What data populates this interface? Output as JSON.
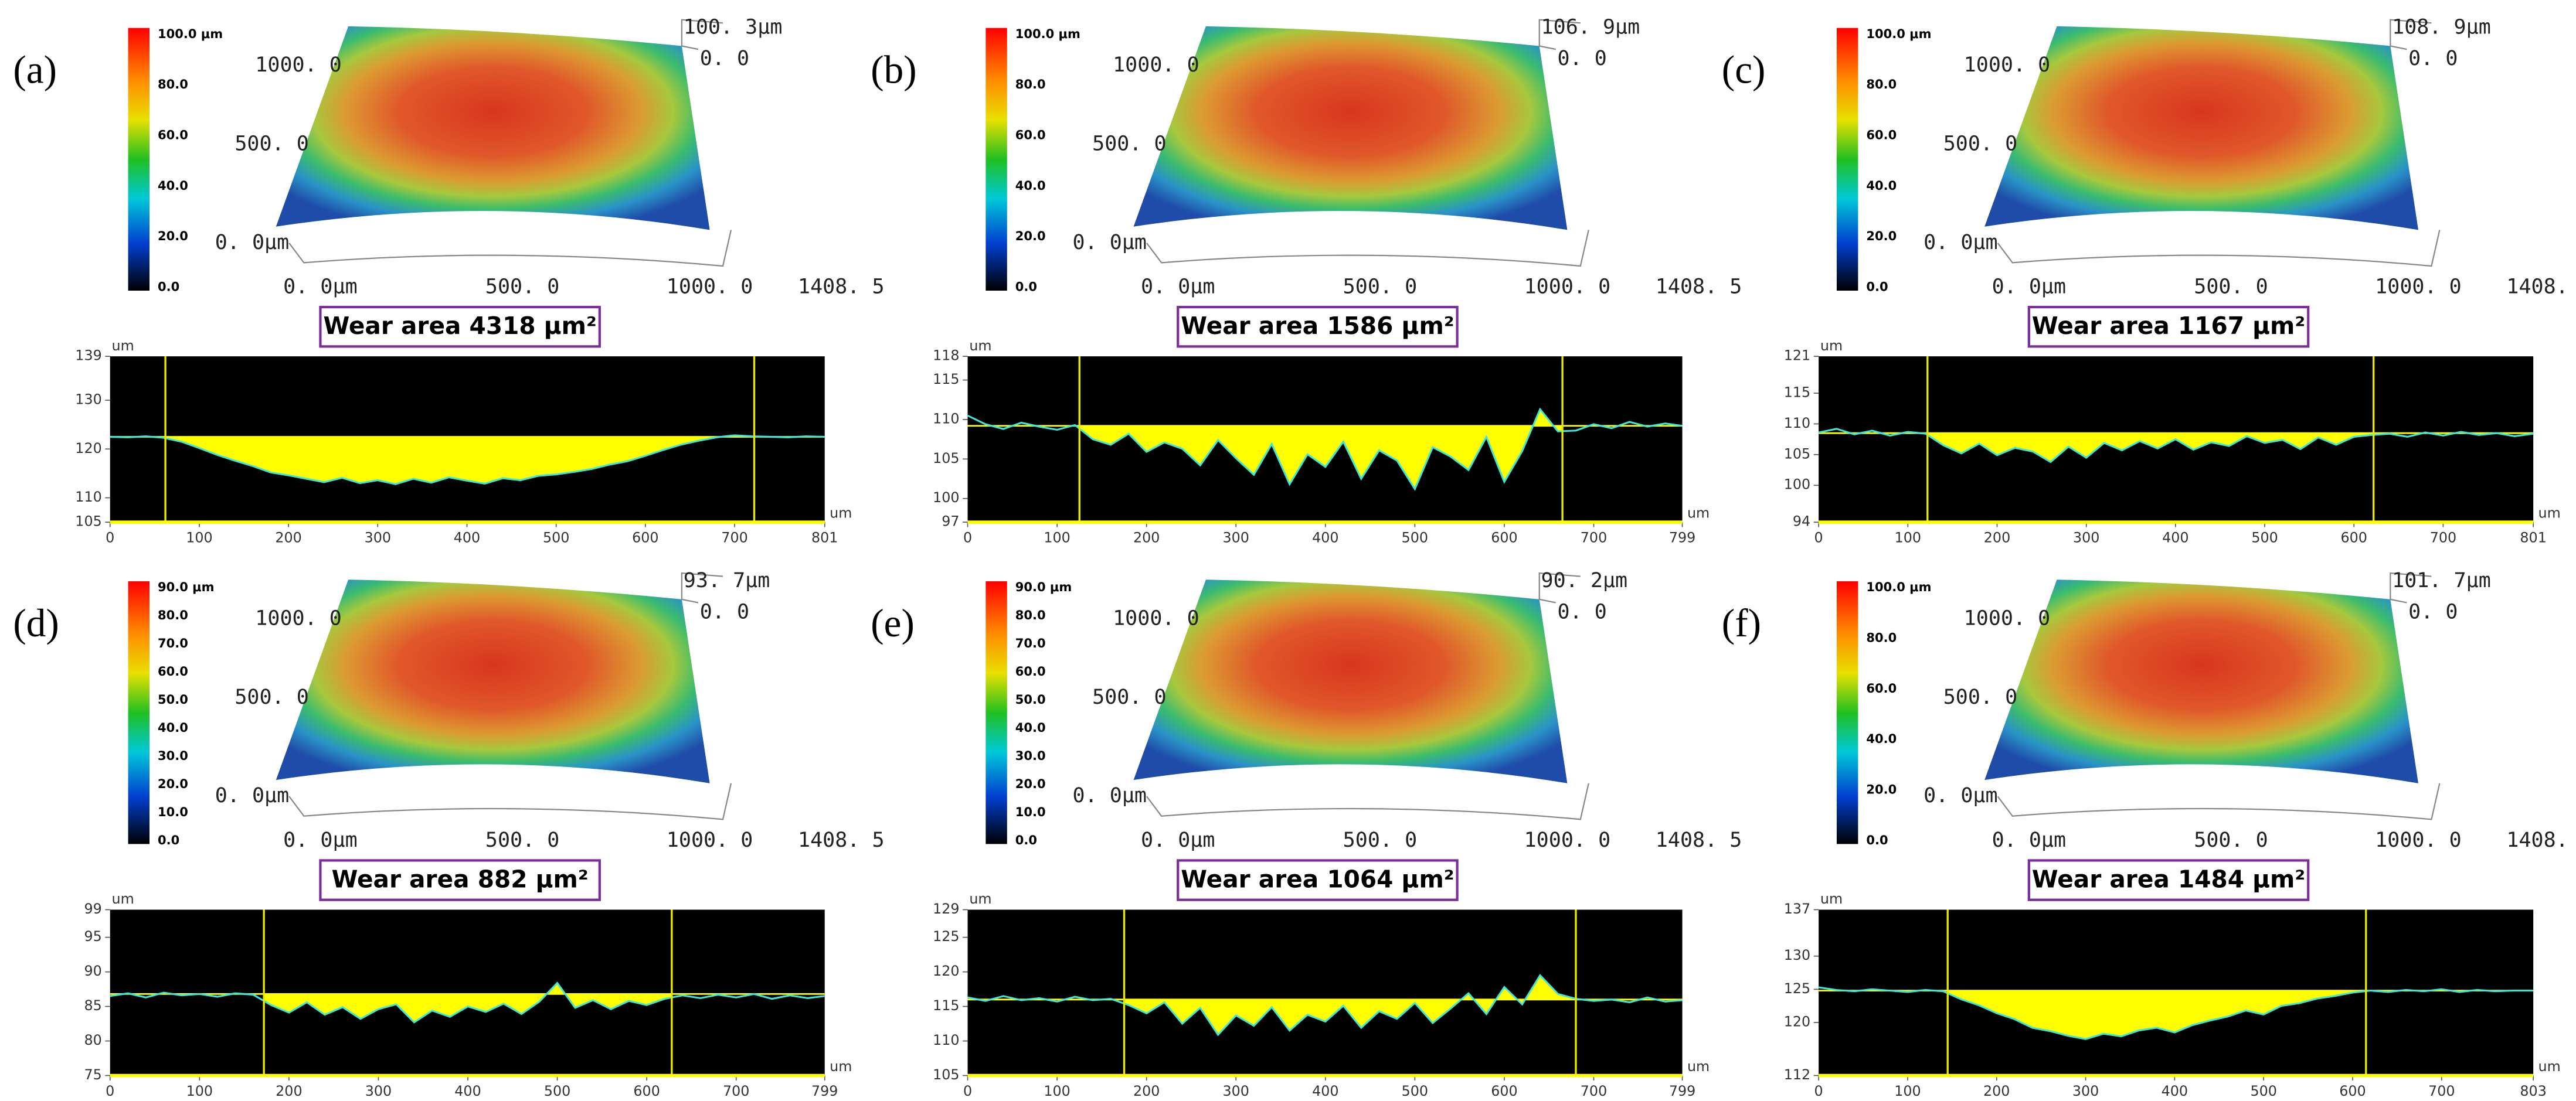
{
  "surface_axis": {
    "y_labels": [
      "1000. 0",
      "500. 0",
      "0. 0μm"
    ],
    "x_labels": [
      "0. 0μm",
      "500. 0",
      "1000. 0",
      "1408. 5"
    ],
    "z_min": "0. 0"
  },
  "chart_data": [
    {
      "type": "line",
      "label": "(a)",
      "colorbar_labels": [
        "100.0 μm",
        "80.0",
        "60.0",
        "40.0",
        "20.0",
        "0.0"
      ],
      "z_max": "100. 3μm",
      "wear_area": "Wear area 4318 μm²",
      "y_unit": "um",
      "x_unit": "um",
      "line_color": "#3ee6d8",
      "fill_color": "#ffff00",
      "x": [
        0,
        20,
        40,
        60,
        80,
        100,
        120,
        140,
        160,
        180,
        200,
        220,
        240,
        260,
        280,
        300,
        320,
        340,
        360,
        380,
        400,
        420,
        440,
        460,
        480,
        500,
        520,
        540,
        560,
        580,
        600,
        620,
        640,
        660,
        680,
        700,
        720,
        740,
        760,
        780,
        801
      ],
      "values": [
        122.5,
        122.4,
        122.6,
        122.3,
        121.5,
        120.2,
        118.8,
        117.6,
        116.5,
        115.2,
        114.6,
        113.9,
        113.2,
        114.1,
        113.0,
        113.6,
        112.8,
        113.9,
        113.1,
        114.2,
        113.5,
        112.9,
        114.0,
        113.6,
        114.5,
        114.8,
        115.3,
        115.9,
        116.8,
        117.5,
        118.6,
        119.8,
        120.9,
        121.7,
        122.4,
        122.8,
        122.6,
        122.5,
        122.4,
        122.6,
        122.5
      ],
      "reference": 122.5,
      "markers": [
        62,
        722
      ],
      "xlim": [
        0,
        801
      ],
      "xticks": [
        0,
        100,
        200,
        300,
        400,
        500,
        600,
        700,
        801
      ],
      "ylim": [
        105,
        139
      ],
      "yticks": [
        105,
        110,
        120,
        130,
        139
      ]
    },
    {
      "type": "line",
      "label": "(b)",
      "colorbar_labels": [
        "100.0 μm",
        "80.0",
        "60.0",
        "40.0",
        "20.0",
        "0.0"
      ],
      "z_max": "106. 9μm",
      "wear_area": "Wear area 1586 μm²",
      "y_unit": "um",
      "x_unit": "um",
      "line_color": "#3ee6d8",
      "fill_color": "#ffff00",
      "x": [
        0,
        20,
        40,
        60,
        80,
        100,
        120,
        140,
        160,
        180,
        200,
        220,
        240,
        260,
        280,
        300,
        320,
        340,
        360,
        380,
        400,
        420,
        440,
        460,
        480,
        500,
        520,
        540,
        560,
        580,
        600,
        620,
        640,
        660,
        680,
        700,
        720,
        740,
        760,
        780,
        799
      ],
      "values": [
        110.5,
        109.4,
        108.8,
        109.6,
        109.1,
        108.7,
        109.3,
        107.5,
        106.8,
        108.2,
        105.9,
        107.1,
        106.3,
        104.2,
        107.4,
        105.1,
        103.0,
        106.9,
        101.8,
        105.6,
        104.0,
        107.2,
        102.5,
        106.1,
        104.8,
        101.2,
        106.5,
        105.3,
        103.6,
        107.8,
        102.1,
        106.0,
        111.3,
        108.5,
        108.6,
        109.4,
        108.9,
        109.7,
        109.1,
        109.5,
        109.2
      ],
      "reference": 109.2,
      "markers": [
        125,
        665
      ],
      "xlim": [
        0,
        799
      ],
      "xticks": [
        0,
        100,
        200,
        300,
        400,
        500,
        600,
        700,
        799
      ],
      "ylim": [
        97,
        118
      ],
      "yticks": [
        97,
        100,
        105,
        110,
        115,
        118
      ]
    },
    {
      "type": "line",
      "label": "(c)",
      "colorbar_labels": [
        "100.0 μm",
        "80.0",
        "60.0",
        "40.0",
        "20.0",
        "0.0"
      ],
      "z_max": "108. 9μm",
      "wear_area": "Wear area 1167 μm²",
      "y_unit": "um",
      "x_unit": "um",
      "line_color": "#3ee6d8",
      "fill_color": "#ffff00",
      "x": [
        0,
        20,
        40,
        60,
        80,
        100,
        120,
        140,
        160,
        180,
        200,
        220,
        240,
        260,
        280,
        300,
        320,
        340,
        360,
        380,
        400,
        420,
        440,
        460,
        480,
        500,
        520,
        540,
        560,
        580,
        600,
        620,
        640,
        660,
        680,
        700,
        720,
        740,
        760,
        780,
        801
      ],
      "values": [
        108.6,
        109.2,
        108.3,
        108.9,
        108.1,
        108.7,
        108.4,
        106.5,
        105.2,
        106.8,
        104.9,
        106.1,
        105.5,
        103.8,
        106.3,
        104.5,
        106.9,
        105.7,
        107.2,
        106.0,
        107.5,
        105.8,
        107.0,
        106.4,
        108.0,
        106.9,
        107.4,
        105.9,
        107.8,
        106.6,
        107.9,
        108.2,
        108.4,
        107.9,
        108.6,
        108.1,
        108.7,
        108.2,
        108.5,
        108.0,
        108.4
      ],
      "reference": 108.5,
      "markers": [
        122,
        622
      ],
      "xlim": [
        0,
        801
      ],
      "xticks": [
        0,
        100,
        200,
        300,
        400,
        500,
        600,
        700,
        801
      ],
      "ylim": [
        94,
        121
      ],
      "yticks": [
        94,
        100,
        105,
        110,
        115,
        121
      ]
    },
    {
      "type": "line",
      "label": "(d)",
      "colorbar_labels": [
        "90.0 μm",
        "80.0",
        "70.0",
        "60.0",
        "50.0",
        "40.0",
        "30.0",
        "20.0",
        "10.0",
        "0.0"
      ],
      "z_max": "93. 7μm",
      "wear_area": "Wear area 882 μm²",
      "y_unit": "um",
      "x_unit": "um",
      "line_color": "#3ee6d8",
      "fill_color": "#ffff00",
      "x": [
        0,
        20,
        40,
        60,
        80,
        100,
        120,
        140,
        160,
        180,
        200,
        220,
        240,
        260,
        280,
        300,
        320,
        340,
        360,
        380,
        400,
        420,
        440,
        460,
        480,
        500,
        520,
        540,
        560,
        580,
        600,
        620,
        640,
        660,
        680,
        700,
        720,
        740,
        760,
        780,
        799
      ],
      "values": [
        86.5,
        86.9,
        86.3,
        87.0,
        86.6,
        86.8,
        86.4,
        86.9,
        86.7,
        85.2,
        84.1,
        85.6,
        83.8,
        84.9,
        83.2,
        84.6,
        85.3,
        82.7,
        84.4,
        83.5,
        85.0,
        84.2,
        85.4,
        83.9,
        85.7,
        88.4,
        84.8,
        85.9,
        84.6,
        85.8,
        85.2,
        86.1,
        86.6,
        86.2,
        86.7,
        86.3,
        86.8,
        86.1,
        86.6,
        86.2,
        86.5
      ],
      "reference": 86.8,
      "markers": [
        172,
        628
      ],
      "xlim": [
        0,
        799
      ],
      "xticks": [
        0,
        100,
        200,
        300,
        400,
        500,
        600,
        700,
        799
      ],
      "ylim": [
        75,
        99
      ],
      "yticks": [
        75,
        80,
        85,
        90,
        95,
        99
      ]
    },
    {
      "type": "line",
      "label": "(e)",
      "colorbar_labels": [
        "90.0 μm",
        "80.0",
        "70.0",
        "60.0",
        "50.0",
        "40.0",
        "30.0",
        "20.0",
        "10.0",
        "0.0"
      ],
      "z_max": "90. 2μm",
      "wear_area": "Wear area 1064 μm²",
      "y_unit": "um",
      "x_unit": "um",
      "line_color": "#3ee6d8",
      "fill_color": "#ffff00",
      "x": [
        0,
        20,
        40,
        60,
        80,
        100,
        120,
        140,
        160,
        180,
        200,
        220,
        240,
        260,
        280,
        300,
        320,
        340,
        360,
        380,
        400,
        420,
        440,
        460,
        480,
        500,
        520,
        540,
        560,
        580,
        600,
        620,
        640,
        660,
        680,
        700,
        720,
        740,
        760,
        780,
        799
      ],
      "values": [
        116.3,
        115.8,
        116.5,
        115.9,
        116.2,
        115.7,
        116.4,
        115.9,
        116.1,
        115.2,
        114.0,
        115.6,
        112.5,
        114.8,
        110.9,
        113.7,
        112.2,
        114.9,
        111.5,
        113.8,
        112.8,
        115.1,
        111.9,
        114.3,
        113.2,
        115.5,
        112.6,
        114.7,
        116.9,
        113.9,
        117.8,
        115.3,
        119.5,
        116.8,
        116.1,
        115.8,
        116.0,
        115.6,
        116.3,
        115.7,
        115.9
      ],
      "reference": 116,
      "markers": [
        175,
        680
      ],
      "xlim": [
        0,
        799
      ],
      "xticks": [
        0,
        100,
        200,
        300,
        400,
        500,
        600,
        700,
        799
      ],
      "ylim": [
        105,
        129
      ],
      "yticks": [
        105,
        110,
        115,
        120,
        125,
        129
      ]
    },
    {
      "type": "line",
      "label": "(f)",
      "colorbar_labels": [
        "100.0 μm",
        "80.0",
        "60.0",
        "40.0",
        "20.0",
        "0.0"
      ],
      "z_max": "101. 7μm",
      "wear_area": "Wear area 1484 μm²",
      "y_unit": "um",
      "x_unit": "um",
      "line_color": "#3ee6d8",
      "fill_color": "#ffff00",
      "x": [
        0,
        20,
        40,
        60,
        80,
        100,
        120,
        140,
        160,
        180,
        200,
        220,
        240,
        260,
        280,
        300,
        320,
        340,
        360,
        380,
        400,
        420,
        440,
        460,
        480,
        500,
        520,
        540,
        560,
        580,
        600,
        620,
        640,
        660,
        680,
        700,
        720,
        740,
        760,
        780,
        803
      ],
      "values": [
        125.3,
        124.9,
        124.7,
        125.0,
        124.8,
        124.6,
        124.9,
        124.7,
        123.5,
        122.6,
        121.4,
        120.5,
        119.2,
        118.7,
        118.0,
        117.5,
        118.3,
        117.9,
        118.8,
        119.2,
        118.5,
        119.6,
        120.3,
        120.9,
        121.8,
        121.2,
        122.5,
        122.9,
        123.6,
        124.0,
        124.5,
        124.8,
        124.6,
        124.9,
        124.7,
        125.0,
        124.6,
        124.9,
        124.7,
        124.8,
        124.8
      ],
      "reference": 124.8,
      "markers": [
        145,
        615
      ],
      "xlim": [
        0,
        803
      ],
      "xticks": [
        0,
        100,
        200,
        300,
        400,
        500,
        600,
        700,
        803
      ],
      "ylim": [
        112,
        137
      ],
      "yticks": [
        112,
        120,
        125,
        130,
        137
      ]
    }
  ]
}
